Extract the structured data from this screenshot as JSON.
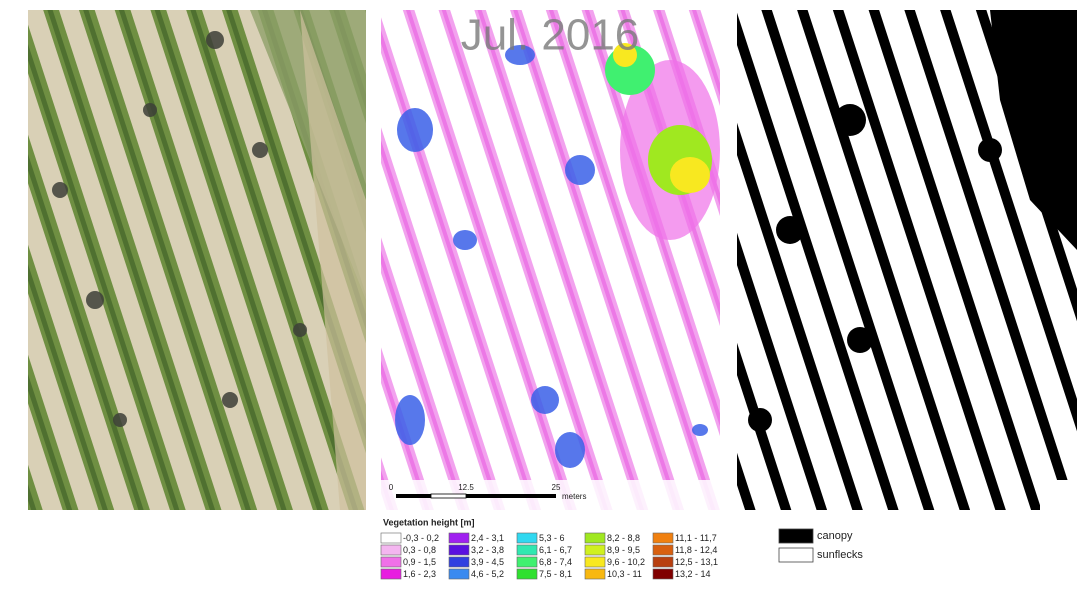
{
  "title": "Jul. 2016",
  "scale_bar": {
    "labels": [
      "0",
      "12.5",
      "25"
    ],
    "unit": "meters"
  },
  "height_legend": {
    "title": "Vegetation height [m]",
    "items": [
      {
        "label": "-0,3 - 0,2",
        "color": "#ffffff"
      },
      {
        "label": "0,3 - 0,8",
        "color": "#f4b6f0"
      },
      {
        "label": "0,9 - 1,5",
        "color": "#f070e8"
      },
      {
        "label": "1,6 - 2,3",
        "color": "#e81ce0"
      },
      {
        "label": "2,4 - 3,1",
        "color": "#a020f0"
      },
      {
        "label": "3,2 - 3,8",
        "color": "#5a10e0"
      },
      {
        "label": "3,9 - 4,5",
        "color": "#3040e0"
      },
      {
        "label": "4,6 - 5,2",
        "color": "#3a8af0"
      },
      {
        "label": "5,3 - 6",
        "color": "#30d8f0"
      },
      {
        "label": "6,1 - 6,7",
        "color": "#30e8b0"
      },
      {
        "label": "6,8 - 7,4",
        "color": "#40f070"
      },
      {
        "label": "7,5 - 8,1",
        "color": "#30e030"
      },
      {
        "label": "8,2 - 8,8",
        "color": "#a0e820"
      },
      {
        "label": "8,9 - 9,5",
        "color": "#d0f020"
      },
      {
        "label": "9,6 - 10,2",
        "color": "#f8e820"
      },
      {
        "label": "10,3 - 11",
        "color": "#f8b810"
      },
      {
        "label": "11,1 - 11,7",
        "color": "#f08010"
      },
      {
        "label": "11,8 - 12,4",
        "color": "#d86010"
      },
      {
        "label": "12,5 - 13,1",
        "color": "#b84010"
      },
      {
        "label": "13,2 - 14",
        "color": "#800000"
      }
    ]
  },
  "canopy_legend": {
    "items": [
      {
        "label": "canopy",
        "color": "#000000"
      },
      {
        "label": "sunflecks",
        "color": "#ffffff"
      }
    ]
  }
}
